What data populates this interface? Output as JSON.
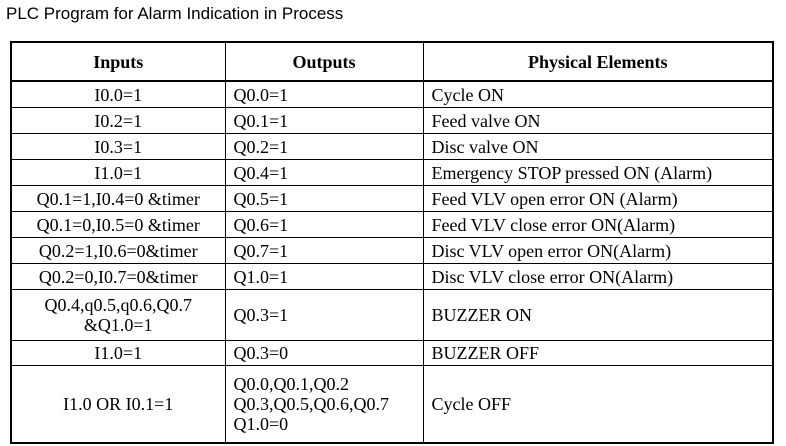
{
  "title": "PLC Program for Alarm Indication in Process",
  "table": {
    "headers": {
      "inputs": "Inputs",
      "outputs": "Outputs",
      "physical": "Physical Elements"
    },
    "rows": [
      {
        "inputs": [
          "I0.0=1"
        ],
        "outputs": [
          "Q0.0=1"
        ],
        "physical": [
          "Cycle ON"
        ]
      },
      {
        "inputs": [
          "I0.2=1"
        ],
        "outputs": [
          "Q0.1=1"
        ],
        "physical": [
          "Feed valve ON"
        ]
      },
      {
        "inputs": [
          "I0.3=1"
        ],
        "outputs": [
          "Q0.2=1"
        ],
        "physical": [
          "Disc valve ON"
        ]
      },
      {
        "inputs": [
          "I1.0=1"
        ],
        "outputs": [
          "Q0.4=1"
        ],
        "physical": [
          "Emergency STOP pressed ON (Alarm)"
        ]
      },
      {
        "inputs": [
          "Q0.1=1,I0.4=0 &timer"
        ],
        "outputs": [
          "Q0.5=1"
        ],
        "physical": [
          "Feed VLV open error ON (Alarm)"
        ]
      },
      {
        "inputs": [
          "Q0.1=0,I0.5=0 &timer"
        ],
        "outputs": [
          "Q0.6=1"
        ],
        "physical": [
          "Feed VLV close error ON(Alarm)"
        ]
      },
      {
        "inputs": [
          "Q0.2=1,I0.6=0&timer"
        ],
        "outputs": [
          "Q0.7=1"
        ],
        "physical": [
          "Disc VLV open error ON(Alarm)"
        ]
      },
      {
        "inputs": [
          "Q0.2=0,I0.7=0&timer"
        ],
        "outputs": [
          "Q1.0=1"
        ],
        "physical": [
          "Disc VLV close error ON(Alarm)"
        ]
      },
      {
        "inputs": [
          "Q0.4,q0.5,q0.6,Q0.7",
          "&Q1.0=1"
        ],
        "outputs": [
          "Q0.3=1"
        ],
        "physical": [
          "BUZZER ON"
        ]
      },
      {
        "inputs": [
          "I1.0=1"
        ],
        "outputs": [
          "Q0.3=0"
        ],
        "physical": [
          "BUZZER OFF"
        ]
      },
      {
        "inputs": [
          "I1.0 OR I0.1=1"
        ],
        "outputs": [
          "Q0.0,Q0.1,Q0.2",
          "Q0.3,Q0.5,Q0.6,Q0.7",
          "Q1.0=0"
        ],
        "physical": [
          "Cycle OFF"
        ]
      }
    ]
  }
}
